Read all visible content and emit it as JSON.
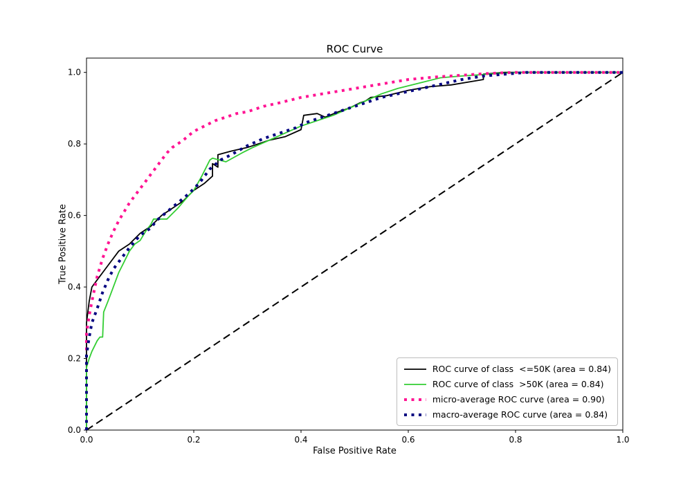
{
  "figure": {
    "background": "#ffffff"
  },
  "chart_data": {
    "type": "line",
    "title": "ROC Curve",
    "xlabel": "False Positive Rate",
    "ylabel": "True Positive Rate",
    "xlim": [
      0.0,
      1.0
    ],
    "ylim": [
      0.0,
      1.04
    ],
    "xticks": [
      0.0,
      0.2,
      0.4,
      0.6,
      0.8,
      1.0
    ],
    "yticks": [
      0.0,
      0.2,
      0.4,
      0.6,
      0.8,
      1.0
    ],
    "grid": false,
    "legend_position": "lower right",
    "series": [
      {
        "id": "chance-diagonal",
        "name": "chance line",
        "color": "#000000",
        "style": "dashed",
        "width": 2,
        "in_legend": false,
        "points": [
          [
            0,
            0
          ],
          [
            1,
            1
          ]
        ]
      },
      {
        "id": "class-le50k",
        "name": "ROC curve of class  <=50K (area = 0.84)",
        "color": "#000000",
        "style": "solid",
        "width": 1.8,
        "in_legend": true,
        "points": [
          [
            0,
            0
          ],
          [
            0,
            0.3
          ],
          [
            0.005,
            0.36
          ],
          [
            0.01,
            0.4
          ],
          [
            0.02,
            0.42
          ],
          [
            0.04,
            0.46
          ],
          [
            0.06,
            0.5
          ],
          [
            0.08,
            0.52
          ],
          [
            0.1,
            0.55
          ],
          [
            0.12,
            0.57
          ],
          [
            0.14,
            0.6
          ],
          [
            0.16,
            0.62
          ],
          [
            0.18,
            0.64
          ],
          [
            0.2,
            0.67
          ],
          [
            0.22,
            0.69
          ],
          [
            0.235,
            0.71
          ],
          [
            0.235,
            0.745
          ],
          [
            0.245,
            0.735
          ],
          [
            0.245,
            0.77
          ],
          [
            0.27,
            0.78
          ],
          [
            0.3,
            0.79
          ],
          [
            0.34,
            0.81
          ],
          [
            0.37,
            0.82
          ],
          [
            0.4,
            0.84
          ],
          [
            0.405,
            0.88
          ],
          [
            0.43,
            0.885
          ],
          [
            0.445,
            0.875
          ],
          [
            0.47,
            0.89
          ],
          [
            0.49,
            0.9
          ],
          [
            0.51,
            0.915
          ],
          [
            0.52,
            0.92
          ],
          [
            0.53,
            0.93
          ],
          [
            0.56,
            0.935
          ],
          [
            0.6,
            0.95
          ],
          [
            0.64,
            0.96
          ],
          [
            0.68,
            0.965
          ],
          [
            0.72,
            0.975
          ],
          [
            0.74,
            0.98
          ],
          [
            0.74,
            0.995
          ],
          [
            0.78,
            1.0
          ],
          [
            1.0,
            1.0
          ]
        ]
      },
      {
        "id": "class-gt50k",
        "name": "ROC curve of class  >50K (area = 0.84)",
        "color": "#32CD32",
        "style": "solid",
        "width": 1.8,
        "in_legend": true,
        "points": [
          [
            0,
            0
          ],
          [
            0,
            0.175
          ],
          [
            0.005,
            0.2
          ],
          [
            0.01,
            0.22
          ],
          [
            0.02,
            0.25
          ],
          [
            0.025,
            0.26
          ],
          [
            0.03,
            0.26
          ],
          [
            0.032,
            0.33
          ],
          [
            0.04,
            0.36
          ],
          [
            0.05,
            0.4
          ],
          [
            0.06,
            0.44
          ],
          [
            0.07,
            0.47
          ],
          [
            0.08,
            0.5
          ],
          [
            0.09,
            0.52
          ],
          [
            0.1,
            0.53
          ],
          [
            0.11,
            0.555
          ],
          [
            0.12,
            0.575
          ],
          [
            0.125,
            0.59
          ],
          [
            0.15,
            0.59
          ],
          [
            0.17,
            0.62
          ],
          [
            0.19,
            0.655
          ],
          [
            0.2,
            0.67
          ],
          [
            0.215,
            0.71
          ],
          [
            0.23,
            0.755
          ],
          [
            0.235,
            0.76
          ],
          [
            0.26,
            0.75
          ],
          [
            0.29,
            0.775
          ],
          [
            0.31,
            0.79
          ],
          [
            0.34,
            0.81
          ],
          [
            0.37,
            0.83
          ],
          [
            0.4,
            0.85
          ],
          [
            0.43,
            0.865
          ],
          [
            0.46,
            0.88
          ],
          [
            0.49,
            0.9
          ],
          [
            0.52,
            0.92
          ],
          [
            0.55,
            0.94
          ],
          [
            0.58,
            0.955
          ],
          [
            0.62,
            0.97
          ],
          [
            0.66,
            0.985
          ],
          [
            0.7,
            0.99
          ],
          [
            0.75,
            0.995
          ],
          [
            0.8,
            1.0
          ],
          [
            1.0,
            1.0
          ]
        ]
      },
      {
        "id": "micro-average",
        "name": "micro-average ROC curve (area = 0.90)",
        "color": "#FF1493",
        "style": "dotted",
        "width": 4,
        "in_legend": true,
        "points": [
          [
            0,
            0
          ],
          [
            0,
            0.27
          ],
          [
            0.005,
            0.32
          ],
          [
            0.01,
            0.36
          ],
          [
            0.02,
            0.43
          ],
          [
            0.03,
            0.48
          ],
          [
            0.04,
            0.52
          ],
          [
            0.05,
            0.555
          ],
          [
            0.06,
            0.585
          ],
          [
            0.07,
            0.61
          ],
          [
            0.08,
            0.635
          ],
          [
            0.09,
            0.655
          ],
          [
            0.1,
            0.675
          ],
          [
            0.11,
            0.695
          ],
          [
            0.12,
            0.715
          ],
          [
            0.13,
            0.735
          ],
          [
            0.14,
            0.755
          ],
          [
            0.15,
            0.775
          ],
          [
            0.16,
            0.79
          ],
          [
            0.18,
            0.81
          ],
          [
            0.2,
            0.835
          ],
          [
            0.22,
            0.85
          ],
          [
            0.24,
            0.865
          ],
          [
            0.26,
            0.875
          ],
          [
            0.28,
            0.885
          ],
          [
            0.3,
            0.89
          ],
          [
            0.33,
            0.905
          ],
          [
            0.36,
            0.915
          ],
          [
            0.4,
            0.93
          ],
          [
            0.44,
            0.94
          ],
          [
            0.48,
            0.95
          ],
          [
            0.52,
            0.96
          ],
          [
            0.56,
            0.97
          ],
          [
            0.6,
            0.98
          ],
          [
            0.65,
            0.987
          ],
          [
            0.7,
            0.992
          ],
          [
            0.75,
            0.997
          ],
          [
            0.8,
            1.0
          ],
          [
            1.0,
            1.0
          ]
        ]
      },
      {
        "id": "macro-average",
        "name": "macro-average ROC curve (area = 0.84)",
        "color": "#000080",
        "style": "dotted",
        "width": 4,
        "in_legend": true,
        "points": [
          [
            0,
            0
          ],
          [
            0,
            0.21
          ],
          [
            0.005,
            0.26
          ],
          [
            0.01,
            0.3
          ],
          [
            0.02,
            0.34
          ],
          [
            0.03,
            0.385
          ],
          [
            0.04,
            0.42
          ],
          [
            0.05,
            0.45
          ],
          [
            0.06,
            0.47
          ],
          [
            0.08,
            0.51
          ],
          [
            0.1,
            0.545
          ],
          [
            0.12,
            0.565
          ],
          [
            0.13,
            0.585
          ],
          [
            0.15,
            0.61
          ],
          [
            0.17,
            0.635
          ],
          [
            0.19,
            0.66
          ],
          [
            0.21,
            0.69
          ],
          [
            0.23,
            0.73
          ],
          [
            0.25,
            0.755
          ],
          [
            0.27,
            0.77
          ],
          [
            0.3,
            0.795
          ],
          [
            0.33,
            0.815
          ],
          [
            0.36,
            0.83
          ],
          [
            0.39,
            0.845
          ],
          [
            0.41,
            0.86
          ],
          [
            0.43,
            0.87
          ],
          [
            0.46,
            0.885
          ],
          [
            0.49,
            0.9
          ],
          [
            0.52,
            0.915
          ],
          [
            0.55,
            0.93
          ],
          [
            0.58,
            0.94
          ],
          [
            0.61,
            0.95
          ],
          [
            0.64,
            0.96
          ],
          [
            0.67,
            0.97
          ],
          [
            0.7,
            0.98
          ],
          [
            0.74,
            0.99
          ],
          [
            0.78,
            0.995
          ],
          [
            0.82,
            1.0
          ],
          [
            1.0,
            1.0
          ]
        ]
      }
    ]
  }
}
